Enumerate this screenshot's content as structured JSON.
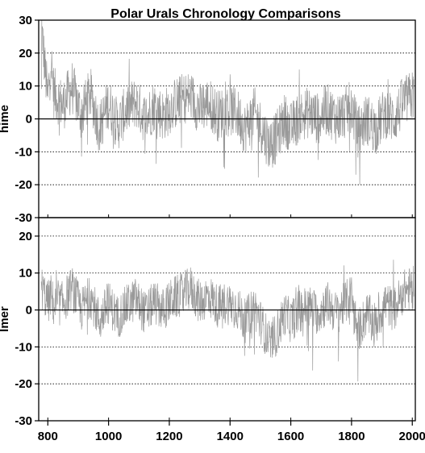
{
  "chart_data": {
    "type": "line",
    "title": "Polar Urals Chronology Comparisons",
    "xlabel": "...",
    "xlim": [
      770,
      2010
    ],
    "x_ticks": [
      800,
      1000,
      1200,
      1400,
      1600,
      1800,
      2000
    ],
    "series_color": "#999999",
    "grid": "dotted horizontal",
    "panels": [
      {
        "ylabel": "hime",
        "ylim": [
          -30,
          30
        ],
        "y_ticks": [
          30,
          20,
          10,
          0,
          -10,
          -20,
          -30
        ],
        "values": [
          [
            780,
            27
          ],
          [
            790,
            16
          ],
          [
            800,
            6
          ],
          [
            810,
            18
          ],
          [
            820,
            8
          ],
          [
            850,
            4
          ],
          [
            880,
            10
          ],
          [
            910,
            1
          ],
          [
            940,
            8
          ],
          [
            970,
            -3
          ],
          [
            1000,
            5
          ],
          [
            1030,
            -2
          ],
          [
            1060,
            3
          ],
          [
            1090,
            5
          ],
          [
            1120,
            0
          ],
          [
            1150,
            4
          ],
          [
            1180,
            1
          ],
          [
            1210,
            4
          ],
          [
            1240,
            6
          ],
          [
            1270,
            7
          ],
          [
            1300,
            3
          ],
          [
            1330,
            5
          ],
          [
            1360,
            1
          ],
          [
            1390,
            3
          ],
          [
            1420,
            2
          ],
          [
            1450,
            -3
          ],
          [
            1480,
            2
          ],
          [
            1510,
            -4
          ],
          [
            1530,
            -8
          ],
          [
            1550,
            -6
          ],
          [
            1580,
            0
          ],
          [
            1600,
            -3
          ],
          [
            1630,
            1
          ],
          [
            1660,
            2
          ],
          [
            1690,
            0
          ],
          [
            1720,
            3
          ],
          [
            1750,
            0
          ],
          [
            1780,
            2
          ],
          [
            1800,
            4
          ],
          [
            1820,
            -4
          ],
          [
            1850,
            0
          ],
          [
            1880,
            -3
          ],
          [
            1910,
            2
          ],
          [
            1940,
            0
          ],
          [
            1970,
            5
          ],
          [
            2000,
            7
          ]
        ]
      },
      {
        "ylabel": "lmer",
        "ylim": [
          -30,
          25
        ],
        "y_ticks": [
          20,
          10,
          0,
          -10,
          -20,
          -30
        ],
        "values": [
          [
            780,
            6
          ],
          [
            790,
            4
          ],
          [
            800,
            2
          ],
          [
            810,
            4
          ],
          [
            820,
            1
          ],
          [
            850,
            2
          ],
          [
            880,
            6
          ],
          [
            910,
            0
          ],
          [
            940,
            4
          ],
          [
            970,
            -3
          ],
          [
            1000,
            2
          ],
          [
            1030,
            -2
          ],
          [
            1060,
            1
          ],
          [
            1090,
            3
          ],
          [
            1120,
            -1
          ],
          [
            1150,
            2
          ],
          [
            1180,
            0
          ],
          [
            1210,
            3
          ],
          [
            1240,
            4
          ],
          [
            1270,
            6
          ],
          [
            1300,
            2
          ],
          [
            1330,
            4
          ],
          [
            1360,
            1
          ],
          [
            1390,
            2
          ],
          [
            1420,
            1
          ],
          [
            1450,
            -3
          ],
          [
            1480,
            1
          ],
          [
            1510,
            -5
          ],
          [
            1530,
            -9
          ],
          [
            1550,
            -7
          ],
          [
            1580,
            -1
          ],
          [
            1600,
            -3
          ],
          [
            1630,
            0
          ],
          [
            1660,
            1
          ],
          [
            1690,
            -1
          ],
          [
            1720,
            2
          ],
          [
            1750,
            -1
          ],
          [
            1780,
            2
          ],
          [
            1800,
            4
          ],
          [
            1820,
            -6
          ],
          [
            1850,
            -1
          ],
          [
            1880,
            -4
          ],
          [
            1910,
            2
          ],
          [
            1940,
            0
          ],
          [
            1970,
            5
          ],
          [
            2000,
            6
          ]
        ]
      }
    ]
  }
}
